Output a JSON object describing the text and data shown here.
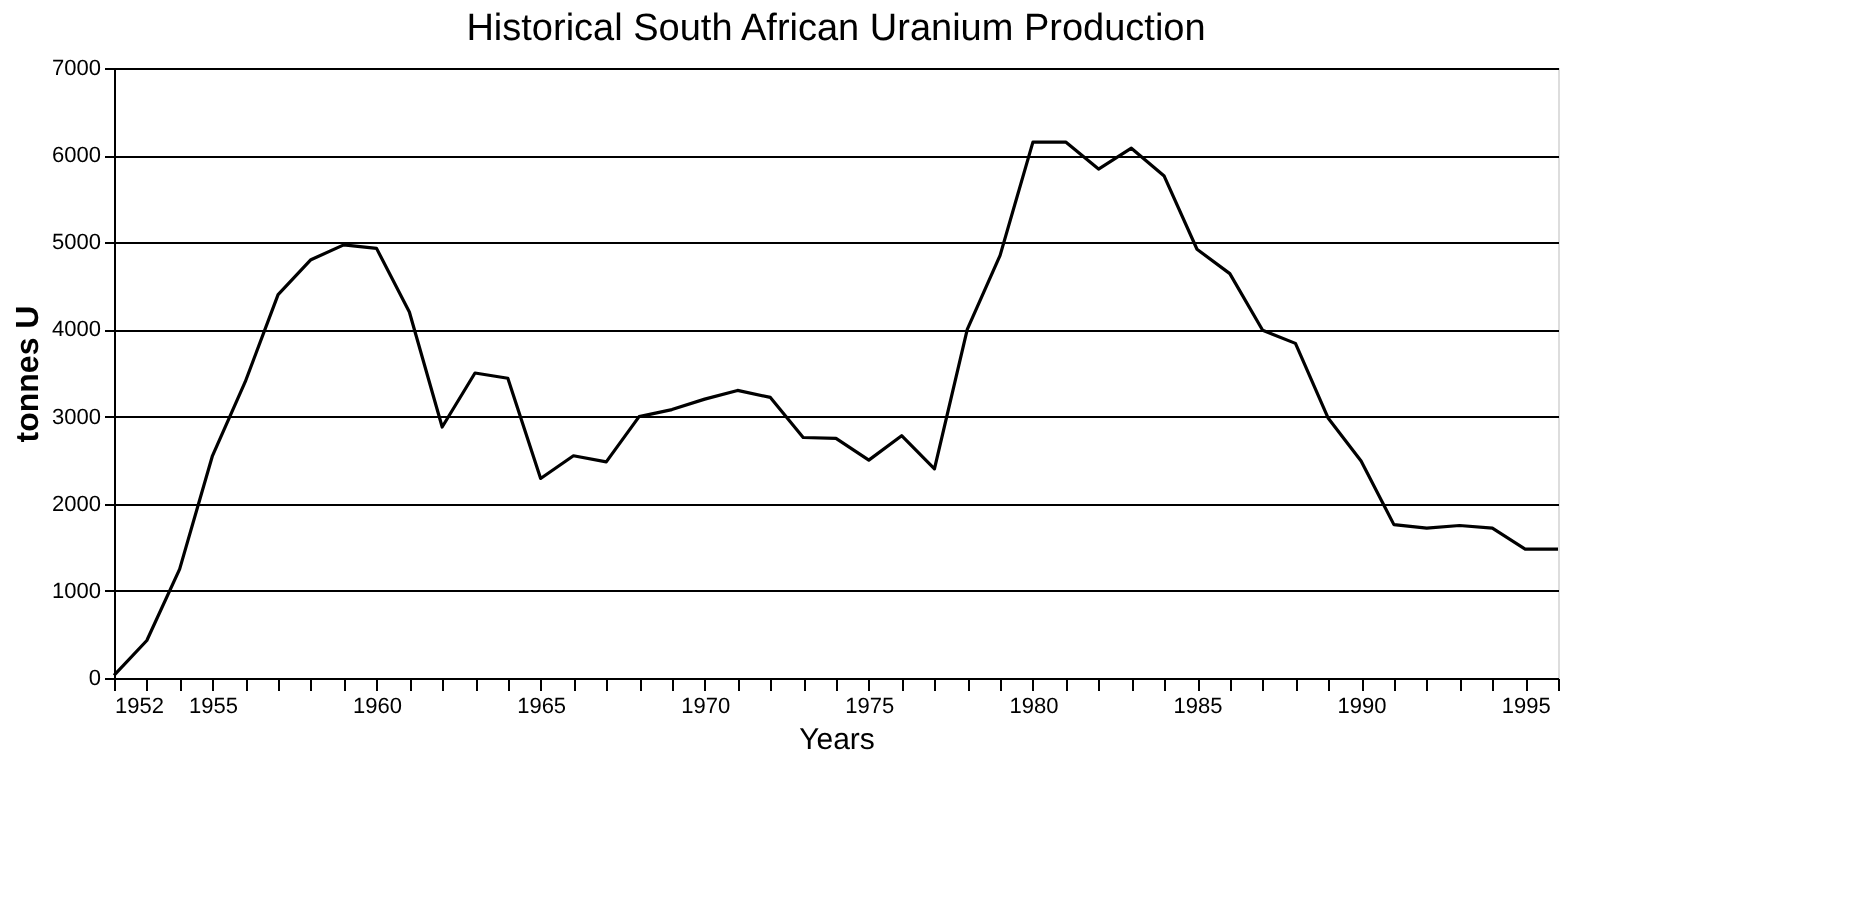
{
  "chart_data": {
    "type": "line",
    "title": "Historical South African Uranium Production",
    "xlabel": "Years",
    "ylabel": "tonnes U",
    "x": [
      1952,
      1953,
      1954,
      1955,
      1956,
      1957,
      1958,
      1959,
      1960,
      1961,
      1962,
      1963,
      1964,
      1965,
      1966,
      1967,
      1968,
      1969,
      1970,
      1971,
      1972,
      1973,
      1974,
      1975,
      1976,
      1977,
      1978,
      1979,
      1980,
      1981,
      1982,
      1983,
      1984,
      1985,
      1986,
      1987,
      1988,
      1989,
      1990,
      1991,
      1992,
      1993,
      1994,
      1995,
      1996
    ],
    "series": [
      {
        "color": "#000000",
        "values": [
          30,
          430,
          1250,
          2550,
          3400,
          4400,
          4800,
          4970,
          4930,
          4200,
          2880,
          3500,
          3440,
          2290,
          2550,
          2480,
          3000,
          3080,
          3200,
          3300,
          3220,
          2760,
          2750,
          2500,
          2780,
          2400,
          4000,
          4850,
          6150,
          6150,
          5840,
          6080,
          5760,
          4920,
          4640,
          3990,
          3840,
          2980,
          2490,
          1760,
          1720,
          1750,
          1720,
          1480,
          1480
        ]
      }
    ],
    "xlim": [
      1952,
      1996
    ],
    "xticks": [
      1952,
      {
        "value": 1953,
        "label": null
      },
      {
        "value": 1954,
        "label": null
      },
      1955,
      {
        "value": 1956,
        "label": null
      },
      {
        "value": 1957,
        "label": null
      },
      {
        "value": 1958,
        "label": null
      },
      {
        "value": 1959,
        "label": null
      },
      1960,
      {
        "value": 1961,
        "label": null
      },
      {
        "value": 1962,
        "label": null
      },
      {
        "value": 1963,
        "label": null
      },
      {
        "value": 1964,
        "label": null
      },
      1965,
      {
        "value": 1966,
        "label": null
      },
      {
        "value": 1967,
        "label": null
      },
      {
        "value": 1968,
        "label": null
      },
      {
        "value": 1969,
        "label": null
      },
      1970,
      {
        "value": 1971,
        "label": null
      },
      {
        "value": 1972,
        "label": null
      },
      {
        "value": 1973,
        "label": null
      },
      {
        "value": 1974,
        "label": null
      },
      1975,
      {
        "value": 1976,
        "label": null
      },
      {
        "value": 1977,
        "label": null
      },
      {
        "value": 1978,
        "label": null
      },
      {
        "value": 1979,
        "label": null
      },
      1980,
      {
        "value": 1981,
        "label": null
      },
      {
        "value": 1982,
        "label": null
      },
      {
        "value": 1983,
        "label": null
      },
      {
        "value": 1984,
        "label": null
      },
      1985,
      {
        "value": 1986,
        "label": null
      },
      {
        "value": 1987,
        "label": null
      },
      {
        "value": 1988,
        "label": null
      },
      {
        "value": 1989,
        "label": null
      },
      1990,
      {
        "value": 1991,
        "label": null
      },
      {
        "value": 1992,
        "label": null
      },
      {
        "value": 1993,
        "label": null
      },
      {
        "value": 1994,
        "label": null
      },
      1995,
      {
        "value": 1996,
        "label": null
      }
    ],
    "ylim": [
      0,
      7000
    ],
    "yticks": [
      0,
      1000,
      2000,
      3000,
      4000,
      5000,
      6000,
      7000
    ],
    "grid": "y",
    "legend": false,
    "marker": "none",
    "line_style": "solid"
  }
}
